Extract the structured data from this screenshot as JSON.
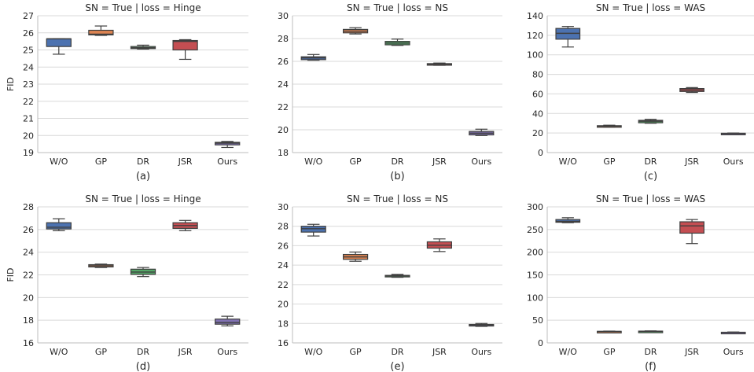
{
  "figure": {
    "ylabel": "FID"
  },
  "colors": {
    "W/O": "#4c72b0",
    "GP": "#dd8452",
    "DR": "#55a868",
    "JSR": "#c44e52",
    "Ours": "#8172b3",
    "grid": "#d9d9d9",
    "box_edge": "#3f3f3f"
  },
  "chart_data": [
    {
      "type": "box",
      "panel": "(a)",
      "title": "SN = True | loss = Hinge",
      "ylabel": "FID",
      "ylim": [
        19,
        27
      ],
      "yticks": [
        19,
        20,
        21,
        22,
        23,
        24,
        25,
        26,
        27
      ],
      "categories": [
        "W/O",
        "GP",
        "DR",
        "JSR",
        "Ours"
      ],
      "boxes": [
        {
          "category": "W/O",
          "whislo": 24.75,
          "q1": 25.2,
          "med": 25.65,
          "q3": 25.65,
          "whishi": 25.65
        },
        {
          "category": "GP",
          "whislo": 25.85,
          "q1": 25.88,
          "med": 25.92,
          "q3": 26.15,
          "whishi": 26.4
        },
        {
          "category": "DR",
          "whislo": 25.05,
          "q1": 25.08,
          "med": 25.13,
          "q3": 25.2,
          "whishi": 25.28
        },
        {
          "category": "JSR",
          "whislo": 24.45,
          "q1": 25.0,
          "med": 25.5,
          "q3": 25.55,
          "whishi": 25.6
        },
        {
          "category": "Ours",
          "whislo": 19.3,
          "q1": 19.45,
          "med": 19.55,
          "q3": 19.6,
          "whishi": 19.65
        }
      ]
    },
    {
      "type": "box",
      "panel": "(b)",
      "title": "SN = True | loss = NS",
      "ylabel": "",
      "ylim": [
        18,
        30
      ],
      "yticks": [
        18,
        20,
        22,
        24,
        26,
        28,
        30
      ],
      "categories": [
        "W/O",
        "GP",
        "DR",
        "JSR",
        "Ours"
      ],
      "boxes": [
        {
          "category": "W/O",
          "whislo": 26.1,
          "q1": 26.15,
          "med": 26.3,
          "q3": 26.4,
          "whishi": 26.6
        },
        {
          "category": "GP",
          "whislo": 28.4,
          "q1": 28.5,
          "med": 28.65,
          "q3": 28.8,
          "whishi": 28.95
        },
        {
          "category": "DR",
          "whislo": 27.4,
          "q1": 27.45,
          "med": 27.6,
          "q3": 27.75,
          "whishi": 27.95
        },
        {
          "category": "JSR",
          "whislo": 25.65,
          "q1": 25.7,
          "med": 25.75,
          "q3": 25.8,
          "whishi": 25.85
        },
        {
          "category": "Ours",
          "whislo": 19.5,
          "q1": 19.55,
          "med": 19.7,
          "q3": 19.85,
          "whishi": 20.05
        }
      ]
    },
    {
      "type": "box",
      "panel": "(c)",
      "title": "SN = True | loss = WAS",
      "ylabel": "",
      "ylim": [
        0,
        140
      ],
      "yticks": [
        0,
        20,
        40,
        60,
        80,
        100,
        120,
        140
      ],
      "categories": [
        "W/O",
        "GP",
        "DR",
        "JSR",
        "Ours"
      ],
      "boxes": [
        {
          "category": "W/O",
          "whislo": 108,
          "q1": 116,
          "med": 122,
          "q3": 127,
          "whishi": 129
        },
        {
          "category": "GP",
          "whislo": 26,
          "q1": 26.5,
          "med": 27,
          "q3": 27.5,
          "whishi": 28
        },
        {
          "category": "DR",
          "whislo": 30,
          "q1": 30.5,
          "med": 32,
          "q3": 33,
          "whishi": 34
        },
        {
          "category": "JSR",
          "whislo": 61.5,
          "q1": 62.5,
          "med": 64,
          "q3": 65.5,
          "whishi": 66.5
        },
        {
          "category": "Ours",
          "whislo": 19,
          "q1": 19.3,
          "med": 19.5,
          "q3": 19.8,
          "whishi": 20
        }
      ]
    },
    {
      "type": "box",
      "panel": "(d)",
      "title": "SN = True | loss = Hinge",
      "ylabel": "FID",
      "ylim": [
        16,
        28
      ],
      "yticks": [
        16,
        18,
        20,
        22,
        24,
        26,
        28
      ],
      "categories": [
        "W/O",
        "GP",
        "DR",
        "JSR",
        "Ours"
      ],
      "boxes": [
        {
          "category": "W/O",
          "whislo": 25.9,
          "q1": 26.05,
          "med": 26.2,
          "q3": 26.6,
          "whishi": 26.95
        },
        {
          "category": "GP",
          "whislo": 22.65,
          "q1": 22.7,
          "med": 22.8,
          "q3": 22.9,
          "whishi": 22.95
        },
        {
          "category": "DR",
          "whislo": 21.85,
          "q1": 22.05,
          "med": 22.25,
          "q3": 22.5,
          "whishi": 22.65
        },
        {
          "category": "JSR",
          "whislo": 25.9,
          "q1": 26.1,
          "med": 26.35,
          "q3": 26.6,
          "whishi": 26.8
        },
        {
          "category": "Ours",
          "whislo": 17.5,
          "q1": 17.65,
          "med": 17.8,
          "q3": 18.1,
          "whishi": 18.35
        }
      ]
    },
    {
      "type": "box",
      "panel": "(e)",
      "title": "SN = True | loss = NS",
      "ylabel": "",
      "ylim": [
        16,
        30
      ],
      "yticks": [
        16,
        18,
        20,
        22,
        24,
        26,
        28,
        30
      ],
      "categories": [
        "W/O",
        "GP",
        "DR",
        "JSR",
        "Ours"
      ],
      "boxes": [
        {
          "category": "W/O",
          "whislo": 27.0,
          "q1": 27.4,
          "med": 27.75,
          "q3": 28.0,
          "whishi": 28.2
        },
        {
          "category": "GP",
          "whislo": 24.4,
          "q1": 24.6,
          "med": 24.85,
          "q3": 25.1,
          "whishi": 25.35
        },
        {
          "category": "DR",
          "whislo": 22.75,
          "q1": 22.8,
          "med": 22.9,
          "q3": 22.95,
          "whishi": 23.05
        },
        {
          "category": "JSR",
          "whislo": 25.4,
          "q1": 25.75,
          "med": 26.05,
          "q3": 26.4,
          "whishi": 26.7
        },
        {
          "category": "Ours",
          "whislo": 17.7,
          "q1": 17.75,
          "med": 17.85,
          "q3": 17.9,
          "whishi": 18.0
        }
      ]
    },
    {
      "type": "box",
      "panel": "(f)",
      "title": "SN = True | loss = WAS",
      "ylabel": "",
      "ylim": [
        0,
        300
      ],
      "yticks": [
        0,
        50,
        100,
        150,
        200,
        250,
        300
      ],
      "categories": [
        "W/O",
        "GP",
        "DR",
        "JSR",
        "Ours"
      ],
      "boxes": [
        {
          "category": "W/O",
          "whislo": 265,
          "q1": 266,
          "med": 268,
          "q3": 272,
          "whishi": 276
        },
        {
          "category": "GP",
          "whislo": 24,
          "q1": 24.5,
          "med": 25,
          "q3": 25.5,
          "whishi": 26
        },
        {
          "category": "DR",
          "whislo": 24.5,
          "q1": 25,
          "med": 25.5,
          "q3": 26,
          "whishi": 26.5
        },
        {
          "category": "JSR",
          "whislo": 219,
          "q1": 242,
          "med": 258,
          "q3": 267,
          "whishi": 272
        },
        {
          "category": "Ours",
          "whislo": 22,
          "q1": 22.5,
          "med": 23,
          "q3": 23.5,
          "whishi": 24
        }
      ]
    }
  ]
}
